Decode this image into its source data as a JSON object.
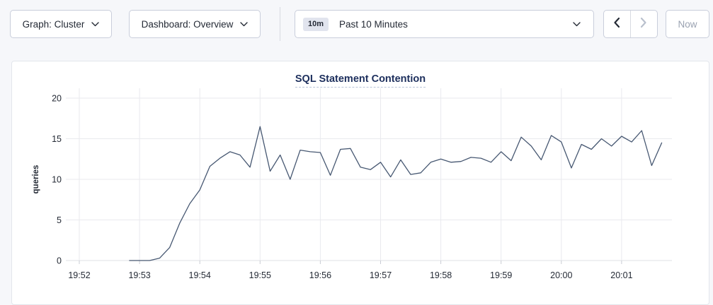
{
  "toolbar": {
    "graph_dropdown_label": "Graph: Cluster",
    "dashboard_dropdown_label": "Dashboard: Overview",
    "time_window_badge": "10m",
    "time_window_label": "Past 10 Minutes",
    "now_button_label": "Now"
  },
  "chart_data": {
    "type": "line",
    "title": "SQL Statement Contention",
    "xlabel": "",
    "ylabel": "queries",
    "ylim": [
      0,
      20
    ],
    "yticks": [
      0,
      5,
      10,
      15,
      20
    ],
    "xticks": [
      "19:52",
      "19:53",
      "19:54",
      "19:55",
      "19:56",
      "19:57",
      "19:58",
      "19:59",
      "20:00",
      "20:01"
    ],
    "grid": true,
    "legend": "none",
    "line_color": "#475872",
    "grid_color": "#e9eaee",
    "series": [
      {
        "name": "SQL Statement Contention",
        "start_offset_seconds": 50,
        "interval_seconds": 10,
        "values": [
          0,
          0,
          0,
          0.3,
          1.6,
          4.6,
          7.0,
          8.7,
          11.6,
          12.6,
          13.4,
          13.0,
          11.5,
          16.5,
          11.0,
          13.0,
          10.0,
          13.6,
          13.4,
          13.3,
          10.5,
          13.7,
          13.8,
          11.5,
          11.2,
          12.1,
          10.3,
          12.4,
          10.6,
          10.8,
          12.1,
          12.5,
          12.1,
          12.2,
          12.7,
          12.6,
          12.1,
          13.4,
          12.3,
          15.2,
          14.1,
          12.4,
          15.4,
          14.6,
          11.4,
          14.3,
          13.7,
          15.0,
          14.1,
          15.3,
          14.6,
          16.0,
          11.7,
          14.5
        ]
      }
    ]
  },
  "colors": {
    "page_background": "#f6f7fa",
    "card_background": "#ffffff",
    "title_navy": "#1c2e5c",
    "line": "#475872",
    "disabled_text": "#9aa2b1"
  }
}
